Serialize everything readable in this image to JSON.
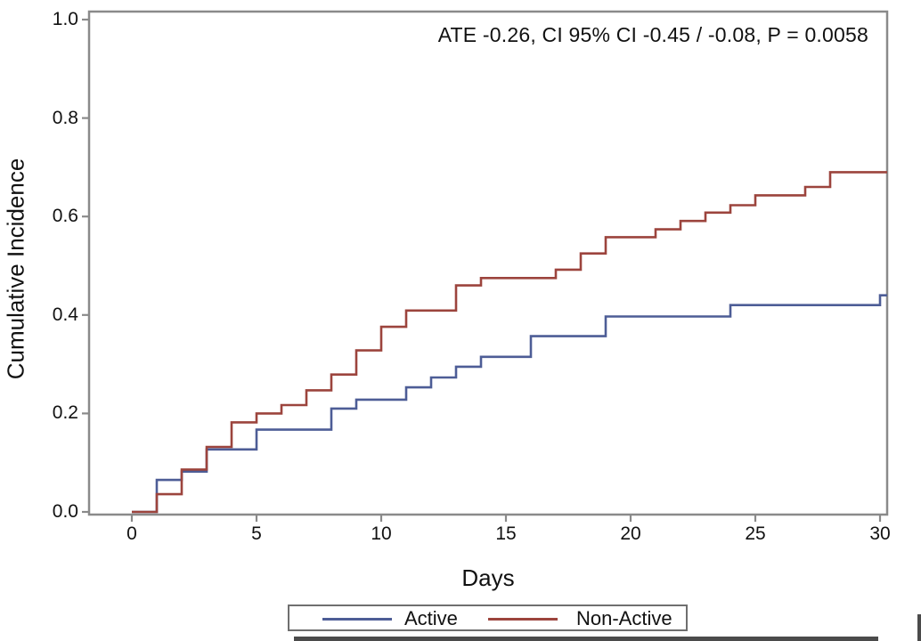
{
  "annotation": "ATE -0.26, CI 95% CI -0.45 / -0.08, P = 0.0058",
  "axes": {
    "x_label": "Days",
    "y_label": "Cumulative Incidence"
  },
  "legend": {
    "items": [
      {
        "label": "Active",
        "color": "#4d5d96"
      },
      {
        "label": "Non-Active",
        "color": "#9c443d"
      }
    ],
    "position": "bottom-center"
  },
  "chart_data": {
    "type": "line",
    "subtype": "step-post",
    "title": "",
    "xlabel": "Days",
    "ylabel": "Cumulative Incidence",
    "xlim": [
      0,
      30
    ],
    "ylim": [
      0.0,
      1.0
    ],
    "x_ticks": [
      "0",
      "5",
      "10",
      "15",
      "20",
      "25",
      "30"
    ],
    "x_tick_values": [
      0,
      5,
      10,
      15,
      20,
      25,
      30
    ],
    "y_ticks": [
      "0.0",
      "0.2",
      "0.4",
      "0.6",
      "0.8",
      "1.0"
    ],
    "y_tick_values": [
      0.0,
      0.2,
      0.4,
      0.6,
      0.8,
      1.0
    ],
    "grid": false,
    "annotation": "ATE -0.26, CI 95% CI -0.45 / -0.08, P = 0.0058",
    "legend_position": "bottom-center",
    "series": [
      {
        "name": "Active",
        "color": "#4d5d96",
        "points": [
          [
            0,
            0.0
          ],
          [
            1,
            0.065
          ],
          [
            2,
            0.082
          ],
          [
            3,
            0.127
          ],
          [
            5,
            0.167
          ],
          [
            8,
            0.21
          ],
          [
            9,
            0.228
          ],
          [
            11,
            0.253
          ],
          [
            12,
            0.273
          ],
          [
            13,
            0.295
          ],
          [
            14,
            0.315
          ],
          [
            16,
            0.357
          ],
          [
            19,
            0.397
          ],
          [
            24,
            0.42
          ],
          [
            30,
            0.44
          ]
        ]
      },
      {
        "name": "Non-Active",
        "color": "#9c443d",
        "points": [
          [
            0,
            0.0
          ],
          [
            1,
            0.036
          ],
          [
            2,
            0.086
          ],
          [
            3,
            0.132
          ],
          [
            4,
            0.182
          ],
          [
            5,
            0.2
          ],
          [
            6,
            0.217
          ],
          [
            7,
            0.247
          ],
          [
            8,
            0.279
          ],
          [
            9,
            0.328
          ],
          [
            10,
            0.376
          ],
          [
            11,
            0.409
          ],
          [
            13,
            0.46
          ],
          [
            14,
            0.475
          ],
          [
            17,
            0.492
          ],
          [
            18,
            0.525
          ],
          [
            19,
            0.558
          ],
          [
            21,
            0.574
          ],
          [
            22,
            0.591
          ],
          [
            23,
            0.608
          ],
          [
            24,
            0.623
          ],
          [
            25,
            0.643
          ],
          [
            27,
            0.66
          ],
          [
            28,
            0.69
          ],
          [
            30,
            0.69
          ]
        ]
      }
    ]
  }
}
